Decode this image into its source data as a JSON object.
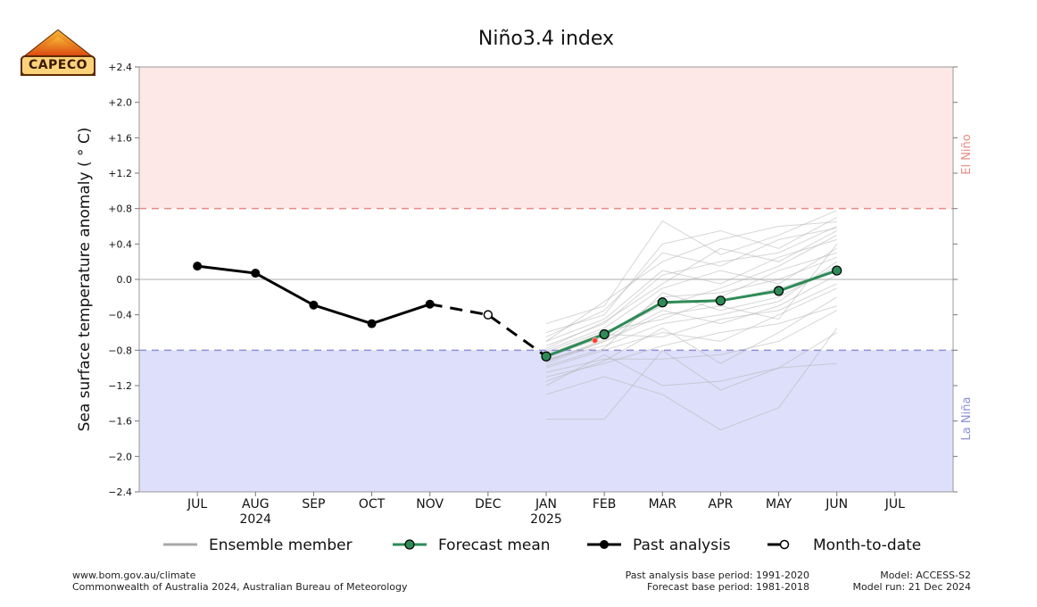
{
  "logo": {
    "text": "CAPECO",
    "colors": {
      "roof_top": "#f5a623",
      "roof_bottom": "#d9400e",
      "border": "#5a2a00"
    }
  },
  "chart_data": {
    "type": "line",
    "title": "Niño3.4 index",
    "ylabel": "Sea surface temperature anomaly ( ° C)",
    "ylim": [
      -2.4,
      2.4
    ],
    "y_ticks": [
      "+2.4",
      "+2.0",
      "+1.6",
      "+1.2",
      "+0.8",
      "+0.4",
      "0.0",
      "−0.4",
      "−0.8",
      "−1.2",
      "−1.6",
      "−2.0",
      "−2.4"
    ],
    "y_tick_values": [
      2.4,
      2.0,
      1.6,
      1.2,
      0.8,
      0.4,
      0.0,
      -0.4,
      -0.8,
      -1.2,
      -1.6,
      -2.0,
      -2.4
    ],
    "x_ticks": [
      "JUL",
      "AUG",
      "SEP",
      "OCT",
      "NOV",
      "DEC",
      "JAN",
      "FEB",
      "MAR",
      "APR",
      "MAY",
      "JUN",
      "JUL"
    ],
    "x_year_labels": [
      {
        "at": "2024-08",
        "text": "2024"
      },
      {
        "at": "2025-01",
        "text": "2025"
      }
    ],
    "x_tick_dates": [
      "2024-07",
      "2024-08",
      "2024-09",
      "2024-10",
      "2024-11",
      "2024-12",
      "2025-01",
      "2025-02",
      "2025-03",
      "2025-04",
      "2025-05",
      "2025-06",
      "2025-07"
    ],
    "xlim": [
      "2024-06",
      "2025-08"
    ],
    "thresholds": [
      {
        "label": "El Niño",
        "value": 0.8,
        "color": "#e88c84",
        "fill": "#fde8e7"
      },
      {
        "label": "La Niña",
        "value": -0.8,
        "color": "#8d8fd6",
        "fill": "#dedffa"
      }
    ],
    "past_analysis": {
      "name": "Past analysis",
      "x": [
        "2024-07",
        "2024-08",
        "2024-09",
        "2024-10",
        "2024-11"
      ],
      "y": [
        0.15,
        0.07,
        -0.29,
        -0.5,
        -0.28
      ]
    },
    "month_to_date": {
      "name": "Month-to-date",
      "x": [
        "2024-11",
        "2024-12",
        "2025-01"
      ],
      "y": [
        -0.28,
        -0.4,
        -0.87
      ]
    },
    "forecast_mean": {
      "name": "Forecast mean",
      "color": "#2e8b57",
      "x": [
        "2025-01",
        "2025-02",
        "2025-03",
        "2025-04",
        "2025-05",
        "2025-06"
      ],
      "y": [
        -0.87,
        -0.62,
        -0.26,
        -0.24,
        -0.13,
        0.1
      ]
    },
    "weekly_marker": {
      "x": "2025-01-27",
      "y": -0.69,
      "color": "#ff3b30"
    },
    "ensemble": {
      "name": "Ensemble member",
      "color": "#b5b5b5",
      "x": [
        "2025-01",
        "2025-02",
        "2025-03",
        "2025-04",
        "2025-05",
        "2025-06"
      ],
      "members": [
        [
          -0.5,
          -0.3,
          0.66,
          0.28,
          0.5,
          0.78
        ],
        [
          -0.6,
          -0.4,
          0.4,
          0.55,
          0.35,
          0.7
        ],
        [
          -0.7,
          -0.25,
          0.2,
          0.45,
          0.6,
          0.65
        ],
        [
          -1.58,
          -1.58,
          -0.8,
          -1.25,
          -1.0,
          -0.95
        ],
        [
          -1.3,
          -1.1,
          -1.3,
          -1.7,
          -1.45,
          -0.55
        ],
        [
          -1.2,
          -0.85,
          -1.2,
          -1.15,
          -1.0,
          -0.6
        ],
        [
          -0.95,
          -0.7,
          -0.4,
          -0.3,
          -0.45,
          0.4
        ],
        [
          -0.8,
          -0.55,
          -0.1,
          0.1,
          -0.05,
          0.35
        ],
        [
          -0.9,
          -0.75,
          -0.5,
          -0.4,
          -0.25,
          0.2
        ],
        [
          -1.0,
          -0.8,
          -0.6,
          -0.7,
          -0.4,
          -0.1
        ],
        [
          -0.85,
          -0.6,
          -0.3,
          -0.1,
          0.15,
          0.5
        ],
        [
          -0.75,
          -0.5,
          0.05,
          0.2,
          0.3,
          0.6
        ],
        [
          -1.1,
          -0.95,
          -0.75,
          -0.6,
          -0.5,
          -0.3
        ],
        [
          -0.92,
          -0.7,
          -0.35,
          -0.5,
          -0.3,
          0.05
        ],
        [
          -0.88,
          -0.65,
          -0.2,
          -0.15,
          0.0,
          0.25
        ],
        [
          -1.05,
          -0.9,
          -0.9,
          -0.85,
          -0.7,
          -0.35
        ],
        [
          -0.7,
          -0.45,
          0.1,
          -0.05,
          0.25,
          0.45
        ],
        [
          -0.82,
          -0.58,
          -0.45,
          -0.2,
          0.1,
          0.3
        ],
        [
          -0.98,
          -0.78,
          -0.15,
          -0.35,
          -0.2,
          0.15
        ],
        [
          -0.78,
          -0.48,
          -0.05,
          0.35,
          0.2,
          0.55
        ],
        [
          -1.15,
          -0.92,
          -0.55,
          -0.95,
          -0.6,
          -0.2
        ],
        [
          -0.65,
          -0.35,
          0.3,
          0.15,
          0.45,
          0.58
        ],
        [
          -0.93,
          -0.68,
          -0.25,
          -0.25,
          -0.1,
          0.1
        ],
        [
          -0.86,
          -0.62,
          -0.65,
          -0.45,
          -0.35,
          -0.05
        ]
      ]
    },
    "legend": [
      {
        "label": "Ensemble member",
        "style": "ensemble"
      },
      {
        "label": "Forecast mean",
        "style": "forecast"
      },
      {
        "label": "Past analysis",
        "style": "past"
      },
      {
        "label": "Month-to-date",
        "style": "mtd"
      }
    ],
    "legend_placement": "bottom",
    "region_labels": {
      "el_nino": "El Niño",
      "la_nina": "La Niña"
    }
  },
  "footer": {
    "left_line1": "www.bom.gov.au/climate",
    "left_line2": "Commonwealth of Australia 2024, Australian Bureau of Meteorology",
    "mid_line1": "Past analysis base period: 1991-2020",
    "mid_line2": "Forecast base period: 1981-2018",
    "right_line1": "Model: ACCESS-S2",
    "right_line2": "Model run: 21 Dec 2024"
  }
}
